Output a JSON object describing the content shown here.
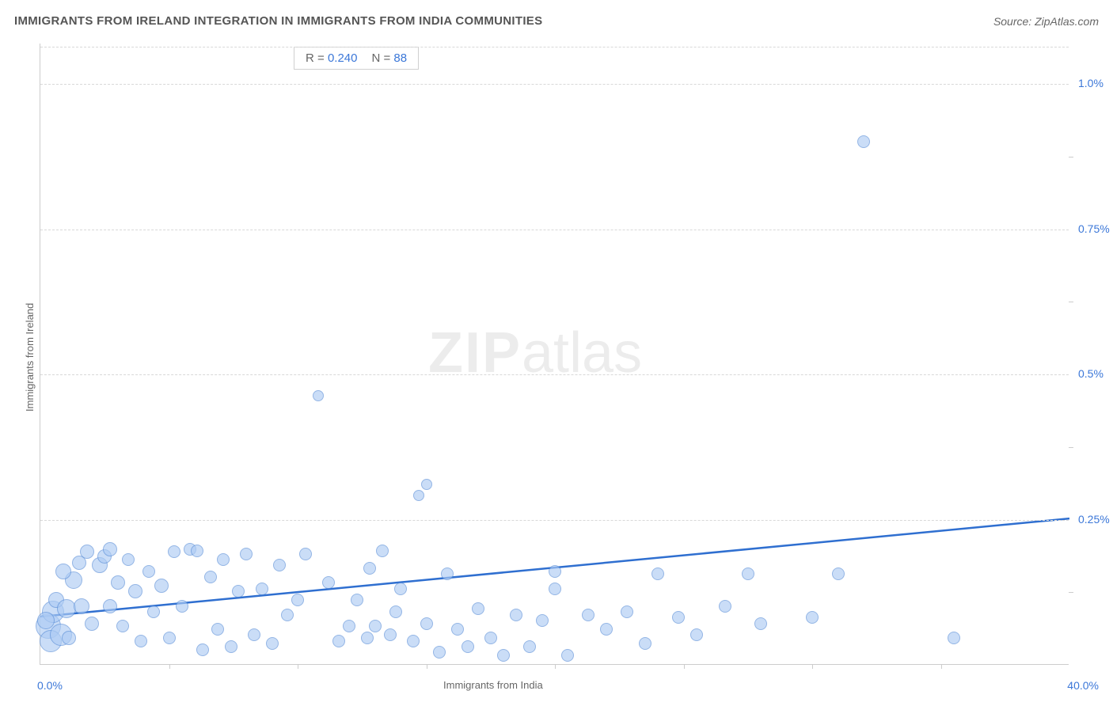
{
  "title": "IMMIGRANTS FROM IRELAND INTEGRATION IN IMMIGRANTS FROM INDIA COMMUNITIES",
  "source": "Source: ZipAtlas.com",
  "watermark_zip": "ZIP",
  "watermark_atlas": "atlas",
  "stats": {
    "r_label": "R =",
    "r_value": "0.240",
    "n_label": "N =",
    "n_value": "88"
  },
  "chart": {
    "type": "scatter",
    "xlabel": "Immigrants from India",
    "ylabel": "Immigrants from Ireland",
    "xlim": [
      0,
      40
    ],
    "ylim": [
      0,
      1.07
    ],
    "x_tick_min": "0.0%",
    "x_tick_max": "40.0%",
    "y_tick_labels": [
      "0.25%",
      "0.5%",
      "0.75%",
      "1.0%"
    ],
    "y_tick_values": [
      0.25,
      0.5,
      0.75,
      1.0
    ],
    "x_minor_ticks": [
      5,
      10,
      15,
      20,
      25,
      30,
      35
    ],
    "y_minor_ticks": [
      0.125,
      0.375,
      0.625,
      0.875
    ],
    "grid_color": "#d8d8d8",
    "axis_color": "#cccccc",
    "background_color": "#ffffff",
    "point_fill": "#aeccf4",
    "point_stroke": "#5b8fd8",
    "point_fill_opacity": 0.65,
    "trend_color": "#2f6fd0",
    "trend_y_at_x0": 0.083,
    "trend_y_at_xmax": 0.252,
    "label_fontsize": 13,
    "tick_fontsize": 14,
    "title_fontsize": 15,
    "points": [
      {
        "x": 0.3,
        "y": 0.065,
        "r": 16
      },
      {
        "x": 0.5,
        "y": 0.09,
        "r": 14
      },
      {
        "x": 0.4,
        "y": 0.04,
        "r": 14
      },
      {
        "x": 0.8,
        "y": 0.05,
        "r": 14
      },
      {
        "x": 0.6,
        "y": 0.11,
        "r": 10
      },
      {
        "x": 1.0,
        "y": 0.095,
        "r": 12
      },
      {
        "x": 1.3,
        "y": 0.145,
        "r": 11
      },
      {
        "x": 1.6,
        "y": 0.1,
        "r": 10
      },
      {
        "x": 0.9,
        "y": 0.16,
        "r": 10
      },
      {
        "x": 1.8,
        "y": 0.193,
        "r": 9
      },
      {
        "x": 2.0,
        "y": 0.07,
        "r": 9
      },
      {
        "x": 2.3,
        "y": 0.17,
        "r": 10
      },
      {
        "x": 2.5,
        "y": 0.185,
        "r": 9
      },
      {
        "x": 2.7,
        "y": 0.1,
        "r": 9
      },
      {
        "x": 2.7,
        "y": 0.197,
        "r": 9
      },
      {
        "x": 3.0,
        "y": 0.14,
        "r": 9
      },
      {
        "x": 3.2,
        "y": 0.065,
        "r": 8
      },
      {
        "x": 3.4,
        "y": 0.18,
        "r": 8
      },
      {
        "x": 3.7,
        "y": 0.125,
        "r": 9
      },
      {
        "x": 3.9,
        "y": 0.04,
        "r": 8
      },
      {
        "x": 4.2,
        "y": 0.16,
        "r": 8
      },
      {
        "x": 4.4,
        "y": 0.09,
        "r": 8
      },
      {
        "x": 4.7,
        "y": 0.135,
        "r": 9
      },
      {
        "x": 5.0,
        "y": 0.045,
        "r": 8
      },
      {
        "x": 5.2,
        "y": 0.193,
        "r": 8
      },
      {
        "x": 5.5,
        "y": 0.1,
        "r": 8
      },
      {
        "x": 5.8,
        "y": 0.198,
        "r": 8
      },
      {
        "x": 6.1,
        "y": 0.195,
        "r": 8
      },
      {
        "x": 6.3,
        "y": 0.025,
        "r": 8
      },
      {
        "x": 6.6,
        "y": 0.15,
        "r": 8
      },
      {
        "x": 6.9,
        "y": 0.06,
        "r": 8
      },
      {
        "x": 7.1,
        "y": 0.18,
        "r": 8
      },
      {
        "x": 7.4,
        "y": 0.03,
        "r": 8
      },
      {
        "x": 7.7,
        "y": 0.125,
        "r": 8
      },
      {
        "x": 8.0,
        "y": 0.19,
        "r": 8
      },
      {
        "x": 8.3,
        "y": 0.05,
        "r": 8
      },
      {
        "x": 8.6,
        "y": 0.13,
        "r": 8
      },
      {
        "x": 9.0,
        "y": 0.035,
        "r": 8
      },
      {
        "x": 9.3,
        "y": 0.17,
        "r": 8
      },
      {
        "x": 9.6,
        "y": 0.085,
        "r": 8
      },
      {
        "x": 10.0,
        "y": 0.11,
        "r": 8
      },
      {
        "x": 10.3,
        "y": 0.19,
        "r": 8
      },
      {
        "x": 10.8,
        "y": 0.462,
        "r": 7
      },
      {
        "x": 11.2,
        "y": 0.14,
        "r": 8
      },
      {
        "x": 11.6,
        "y": 0.04,
        "r": 8
      },
      {
        "x": 12.0,
        "y": 0.065,
        "r": 8
      },
      {
        "x": 12.3,
        "y": 0.11,
        "r": 8
      },
      {
        "x": 12.7,
        "y": 0.045,
        "r": 8
      },
      {
        "x": 12.8,
        "y": 0.165,
        "r": 8
      },
      {
        "x": 13.0,
        "y": 0.065,
        "r": 8
      },
      {
        "x": 13.3,
        "y": 0.195,
        "r": 8
      },
      {
        "x": 13.6,
        "y": 0.05,
        "r": 8
      },
      {
        "x": 13.8,
        "y": 0.09,
        "r": 8
      },
      {
        "x": 14.0,
        "y": 0.13,
        "r": 8
      },
      {
        "x": 14.5,
        "y": 0.04,
        "r": 8
      },
      {
        "x": 14.7,
        "y": 0.29,
        "r": 7
      },
      {
        "x": 15.0,
        "y": 0.31,
        "r": 7
      },
      {
        "x": 15.0,
        "y": 0.07,
        "r": 8
      },
      {
        "x": 15.5,
        "y": 0.02,
        "r": 8
      },
      {
        "x": 15.8,
        "y": 0.155,
        "r": 8
      },
      {
        "x": 16.2,
        "y": 0.06,
        "r": 8
      },
      {
        "x": 16.6,
        "y": 0.03,
        "r": 8
      },
      {
        "x": 17.0,
        "y": 0.095,
        "r": 8
      },
      {
        "x": 17.5,
        "y": 0.045,
        "r": 8
      },
      {
        "x": 18.0,
        "y": 0.015,
        "r": 8
      },
      {
        "x": 18.5,
        "y": 0.085,
        "r": 8
      },
      {
        "x": 19.0,
        "y": 0.03,
        "r": 8
      },
      {
        "x": 19.5,
        "y": 0.075,
        "r": 8
      },
      {
        "x": 20.0,
        "y": 0.13,
        "r": 8
      },
      {
        "x": 20.0,
        "y": 0.16,
        "r": 8
      },
      {
        "x": 20.5,
        "y": 0.015,
        "r": 8
      },
      {
        "x": 21.3,
        "y": 0.085,
        "r": 8
      },
      {
        "x": 22.0,
        "y": 0.06,
        "r": 8
      },
      {
        "x": 22.8,
        "y": 0.09,
        "r": 8
      },
      {
        "x": 23.5,
        "y": 0.035,
        "r": 8
      },
      {
        "x": 24.0,
        "y": 0.155,
        "r": 8
      },
      {
        "x": 24.8,
        "y": 0.08,
        "r": 8
      },
      {
        "x": 25.5,
        "y": 0.05,
        "r": 8
      },
      {
        "x": 26.6,
        "y": 0.1,
        "r": 8
      },
      {
        "x": 27.5,
        "y": 0.155,
        "r": 8
      },
      {
        "x": 28.0,
        "y": 0.07,
        "r": 8
      },
      {
        "x": 30.0,
        "y": 0.08,
        "r": 8
      },
      {
        "x": 31.0,
        "y": 0.155,
        "r": 8
      },
      {
        "x": 32.0,
        "y": 0.9,
        "r": 8
      },
      {
        "x": 35.5,
        "y": 0.045,
        "r": 8
      },
      {
        "x": 1.1,
        "y": 0.045,
        "r": 9
      },
      {
        "x": 1.5,
        "y": 0.175,
        "r": 9
      },
      {
        "x": 0.2,
        "y": 0.075,
        "r": 11
      }
    ]
  }
}
